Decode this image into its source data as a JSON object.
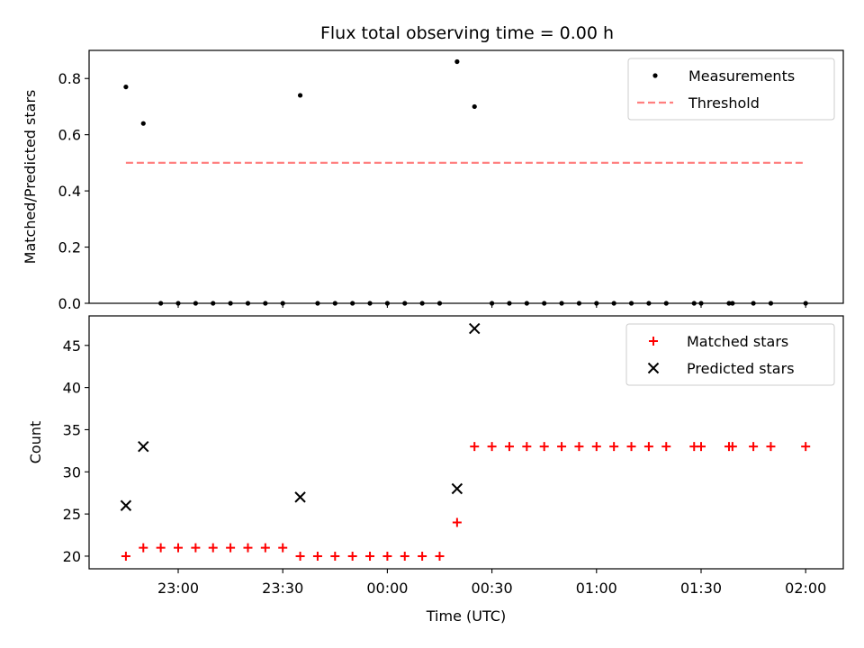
{
  "chart_data": {
    "title": "Flux total observing time = 0.00 h",
    "panels": [
      {
        "type": "scatter",
        "ylabel": "Matched/Predicted stars",
        "ylim": [
          0,
          0.9
        ],
        "yticks": [
          "0.0",
          "0.2",
          "0.4",
          "0.6",
          "0.8"
        ],
        "show_xtick_labels": false,
        "legend": {
          "placement": "top-right",
          "entries": [
            {
              "label": "Measurements",
              "marker": "dot",
              "color": "#000000"
            },
            {
              "label": "Threshold",
              "marker": "dashed-line",
              "color": "#ff7f7f"
            }
          ]
        },
        "series": [
          {
            "name": "Measurements",
            "color": "#000000",
            "marker": "dot",
            "x": [
              "22:45",
              "22:50",
              "22:55",
              "23:00",
              "23:05",
              "23:10",
              "23:15",
              "23:20",
              "23:25",
              "23:30",
              "23:35",
              "23:40",
              "23:45",
              "23:50",
              "23:55",
              "00:00",
              "00:05",
              "00:10",
              "00:15",
              "00:20",
              "00:25",
              "00:30",
              "00:35",
              "00:40",
              "00:45",
              "00:50",
              "00:55",
              "01:00",
              "01:05",
              "01:10",
              "01:15",
              "01:20",
              "01:28",
              "01:30",
              "01:38",
              "01:39",
              "01:45",
              "01:50",
              "02:00"
            ],
            "y": [
              0.77,
              0.64,
              0.0,
              0.0,
              0.0,
              0.0,
              0.0,
              0.0,
              0.0,
              0.0,
              0.74,
              0.0,
              0.0,
              0.0,
              0.0,
              0.0,
              0.0,
              0.0,
              0.0,
              0.86,
              0.7,
              0.0,
              0.0,
              0.0,
              0.0,
              0.0,
              0.0,
              0.0,
              0.0,
              0.0,
              0.0,
              0.0,
              0.0,
              0.0,
              0.0,
              0.0,
              0.0,
              0.0,
              0.0
            ]
          },
          {
            "name": "Threshold",
            "color": "#ff7f7f",
            "style": "dashed",
            "x": [
              "22:45",
              "02:00"
            ],
            "y": [
              0.5,
              0.5
            ]
          }
        ]
      },
      {
        "type": "scatter",
        "ylabel": "Count",
        "xlabel": "Time (UTC)",
        "ylim": [
          18.5,
          48.5
        ],
        "yticks": [
          "20",
          "25",
          "30",
          "35",
          "40",
          "45"
        ],
        "xticks": [
          "23:00",
          "23:30",
          "00:00",
          "00:30",
          "01:00",
          "01:30",
          "02:00"
        ],
        "legend": {
          "placement": "top-right",
          "entries": [
            {
              "label": "Matched stars",
              "marker": "plus",
              "color": "#ff0000"
            },
            {
              "label": "Predicted stars",
              "marker": "x",
              "color": "#000000"
            }
          ]
        },
        "series": [
          {
            "name": "Matched stars",
            "color": "#ff0000",
            "marker": "plus",
            "x": [
              "22:45",
              "22:50",
              "22:55",
              "23:00",
              "23:05",
              "23:10",
              "23:15",
              "23:20",
              "23:25",
              "23:30",
              "23:35",
              "23:40",
              "23:45",
              "23:50",
              "23:55",
              "00:00",
              "00:05",
              "00:10",
              "00:15",
              "00:20",
              "00:25",
              "00:30",
              "00:35",
              "00:40",
              "00:45",
              "00:50",
              "00:55",
              "01:00",
              "01:05",
              "01:10",
              "01:15",
              "01:20",
              "01:28",
              "01:30",
              "01:38",
              "01:39",
              "01:45",
              "01:50",
              "02:00"
            ],
            "y": [
              20,
              21,
              21,
              21,
              21,
              21,
              21,
              21,
              21,
              21,
              20,
              20,
              20,
              20,
              20,
              20,
              20,
              20,
              20,
              24,
              33,
              33,
              33,
              33,
              33,
              33,
              33,
              33,
              33,
              33,
              33,
              33,
              33,
              33,
              33,
              33,
              33,
              33,
              33
            ]
          },
          {
            "name": "Predicted stars",
            "color": "#000000",
            "marker": "x",
            "x": [
              "22:45",
              "22:50",
              "23:35",
              "00:20",
              "00:25"
            ],
            "y": [
              26,
              33,
              27,
              28,
              47
            ]
          }
        ]
      }
    ]
  }
}
